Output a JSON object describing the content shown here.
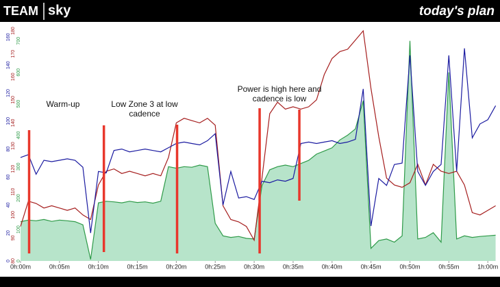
{
  "header": {
    "left_brand": "TEAM",
    "left_sub": "sky",
    "right_brand": "today's plan"
  },
  "chart_data": {
    "type": "line",
    "annotations": [
      "Warm-up",
      "Low Zone 3 at low",
      "cadence",
      "Power is high here and",
      "cadence is low"
    ],
    "markers": [
      1.1,
      10.7,
      20.1,
      30.7,
      35.8
    ],
    "marker_color": "#e8372c",
    "x": [
      0,
      1,
      2,
      3,
      4,
      5,
      6,
      7,
      8,
      9,
      10,
      11,
      12,
      13,
      14,
      15,
      16,
      17,
      18,
      19,
      20,
      21,
      22,
      23,
      24,
      25,
      26,
      27,
      28,
      29,
      30,
      31,
      32,
      33,
      34,
      35,
      36,
      37,
      38,
      39,
      40,
      41,
      42,
      43,
      44,
      45,
      46,
      47,
      48,
      49,
      50,
      51,
      52,
      53,
      54,
      55,
      56,
      57,
      58,
      59,
      60,
      61
    ],
    "xlim": [
      0,
      61.2
    ],
    "xticks": [
      {
        "value": 0,
        "label": "0h:00m"
      },
      {
        "value": 5,
        "label": "0h:05m"
      },
      {
        "value": 10,
        "label": "0h:10m"
      },
      {
        "value": 15,
        "label": "0h:15m"
      },
      {
        "value": 20,
        "label": "0h:20m"
      },
      {
        "value": 25,
        "label": "0h:25m"
      },
      {
        "value": 30,
        "label": "0h:30m"
      },
      {
        "value": 35,
        "label": "0h:35m"
      },
      {
        "value": 40,
        "label": "0h:40m"
      },
      {
        "value": 45,
        "label": "0h:45m"
      },
      {
        "value": 50,
        "label": "0h:50m"
      },
      {
        "value": 55,
        "label": "0h:55m"
      },
      {
        "value": 60,
        "label": "1h:00m"
      }
    ],
    "ylim": [
      0,
      167
    ],
    "yticks": [
      0,
      20,
      40,
      60,
      80,
      100,
      120,
      140,
      160
    ],
    "y2lim": [
      0,
      743
    ],
    "y2ticks": [
      0,
      100,
      200,
      300,
      400,
      500,
      600,
      700
    ],
    "y3lim": [
      80,
      181.5
    ],
    "y3ticks": [
      80,
      90,
      100,
      110,
      120,
      130,
      140,
      150,
      160,
      170,
      180
    ],
    "series": [
      {
        "color": "#2e9a48",
        "fill": "#b7e4ca",
        "axis": "y2",
        "values": [
          125,
          130,
          128,
          132,
          126,
          130,
          128,
          125,
          115,
          5,
          185,
          190,
          188,
          185,
          190,
          186,
          188,
          184,
          190,
          300,
          295,
          300,
          298,
          305,
          300,
          120,
          80,
          75,
          78,
          72,
          70,
          240,
          290,
          300,
          305,
          300,
          310,
          320,
          340,
          350,
          360,
          385,
          400,
          420,
          510,
          40,
          65,
          70,
          60,
          80,
          700,
          70,
          75,
          90,
          60,
          600,
          70,
          80,
          75,
          78,
          80,
          82
        ]
      },
      {
        "color": "#a51d1d",
        "axis": "y3",
        "values": [
          95,
          106,
          105,
          103,
          104,
          103,
          102,
          103,
          100,
          98,
          113,
          119,
          120,
          118,
          119,
          118,
          117,
          118,
          117,
          125,
          140,
          142,
          141,
          140,
          142,
          139,
          104,
          98,
          97,
          95,
          89,
          116,
          144,
          149,
          146,
          147,
          146,
          147,
          150,
          161,
          168,
          171,
          172,
          176,
          180,
          155,
          134,
          116,
          113,
          112,
          114,
          122,
          113,
          122,
          119,
          118,
          119,
          113,
          101,
          100,
          102,
          104
        ]
      },
      {
        "color": "#1a1aa0",
        "axis": "y",
        "values": [
          74,
          76,
          62,
          72,
          71,
          72,
          73,
          72,
          67,
          20,
          64,
          63,
          79,
          80,
          78,
          79,
          80,
          79,
          78,
          81,
          84,
          85,
          84,
          83,
          86,
          91,
          40,
          64,
          45,
          46,
          44,
          57,
          56,
          58,
          57,
          59,
          84,
          85,
          84,
          85,
          86,
          84,
          85,
          87,
          123,
          25,
          59,
          54,
          69,
          70,
          147,
          64,
          54,
          64,
          69,
          147,
          64,
          152,
          88,
          98,
          101,
          111
        ]
      }
    ]
  }
}
